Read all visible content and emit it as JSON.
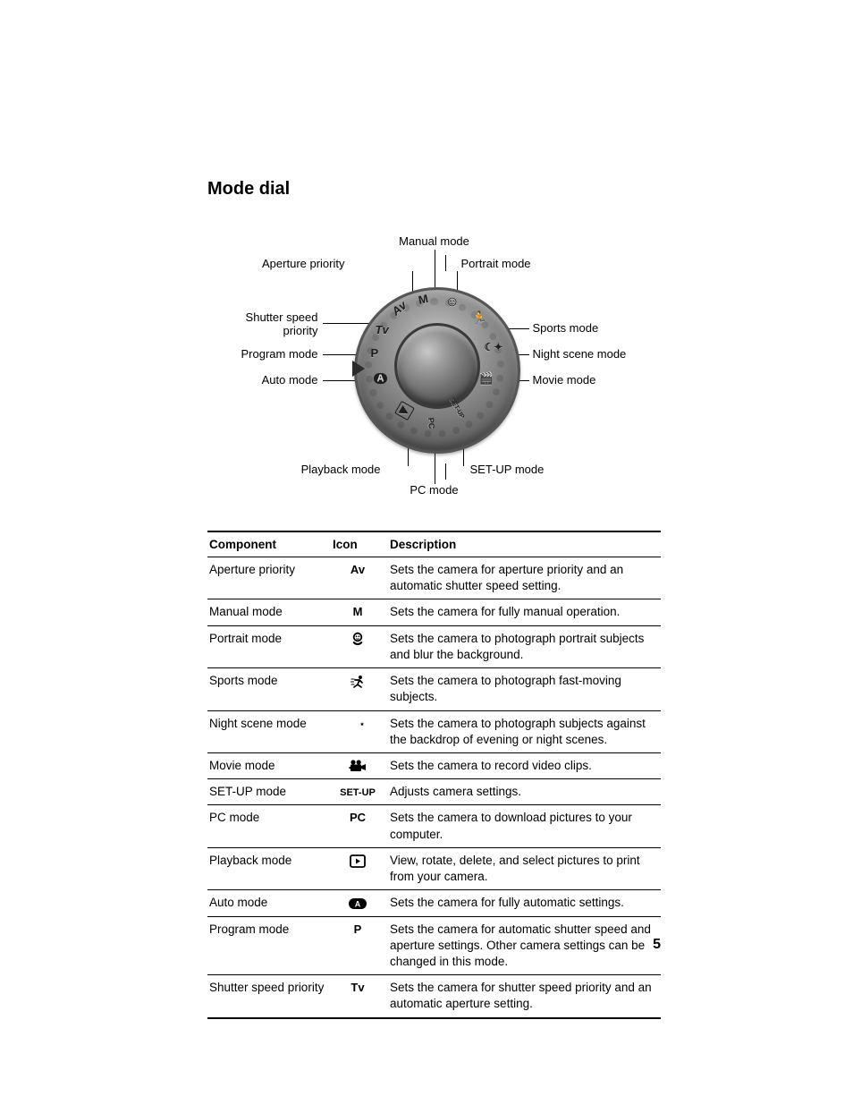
{
  "title": "Mode dial",
  "page_number": "5",
  "diagram": {
    "top_center_label": "Manual mode",
    "top_left_label": "Aperture priority",
    "top_right_label": "Portrait mode",
    "left_labels": [
      "Shutter speed\npriority",
      "Program mode",
      "Auto mode"
    ],
    "right_labels": [
      "Sports mode",
      "Night scene mode",
      "Movie mode"
    ],
    "bottom_left_label": "Playback mode",
    "bottom_right_label": "SET-UP mode",
    "bottom_center_label": "PC mode",
    "dial_glyphs": {
      "P": "P",
      "Tv": "Tv",
      "Av": "Av",
      "M": "M",
      "portrait": "☺",
      "sports": "🏃",
      "night": "☾✦",
      "movie": "🎬",
      "setup": "SET-UP",
      "pc": "PC",
      "playback": "▶",
      "auto": "A"
    }
  },
  "table": {
    "headers": [
      "Component",
      "Icon",
      "Description"
    ],
    "rows": [
      {
        "component": "Aperture priority",
        "icon_label": "Av",
        "icon_kind": "text-bold",
        "description": "Sets the camera for aperture priority and an automatic shutter speed setting."
      },
      {
        "component": "Manual mode",
        "icon_label": "M",
        "icon_kind": "text-bold",
        "description": "Sets the camera for fully manual operation."
      },
      {
        "component": "Portrait mode",
        "icon_label": "portrait",
        "icon_kind": "svg-portrait",
        "description": "Sets the camera to photograph portrait subjects and blur the background."
      },
      {
        "component": "Sports mode",
        "icon_label": "sports",
        "icon_kind": "svg-sports",
        "description": "Sets the camera to photograph fast-moving subjects."
      },
      {
        "component": "Night scene mode",
        "icon_label": "night",
        "icon_kind": "svg-night",
        "description": "Sets the camera to photograph subjects against the backdrop of evening or night scenes."
      },
      {
        "component": "Movie mode",
        "icon_label": "movie",
        "icon_kind": "svg-movie",
        "description": "Sets the camera to record video clips."
      },
      {
        "component": "SET-UP mode",
        "icon_label": "SET-UP",
        "icon_kind": "text-bold-small",
        "description": "Adjusts camera settings."
      },
      {
        "component": "PC mode",
        "icon_label": "PC",
        "icon_kind": "text-bold",
        "description": "Sets the camera to download pictures to your computer."
      },
      {
        "component": "Playback mode",
        "icon_label": "playback",
        "icon_kind": "svg-playback",
        "description": "View, rotate, delete, and select pictures to print from your camera."
      },
      {
        "component": "Auto mode",
        "icon_label": "auto",
        "icon_kind": "svg-auto",
        "description": "Sets the camera for fully automatic settings."
      },
      {
        "component": "Program mode",
        "icon_label": "P",
        "icon_kind": "text-bold",
        "description": "Sets the camera for automatic shutter speed and aperture settings. Other camera settings can be changed in this mode."
      },
      {
        "component": "Shutter speed priority",
        "icon_label": "Tv",
        "icon_kind": "text-bold",
        "description": "Sets the camera for shutter speed priority and an automatic aperture setting."
      }
    ]
  }
}
